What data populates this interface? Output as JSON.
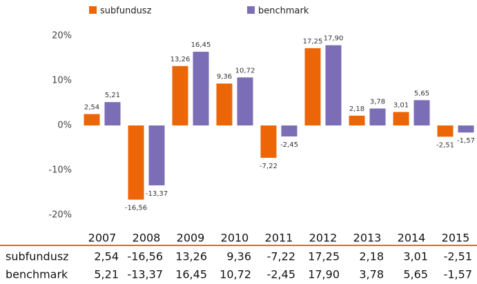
{
  "chart_data": {
    "type": "bar",
    "categories": [
      "2007",
      "2008",
      "2009",
      "2010",
      "2011",
      "2012",
      "2013",
      "2014",
      "2015"
    ],
    "series": [
      {
        "name": "subfundusz",
        "color": "#ec6608",
        "values": [
          2.54,
          -16.56,
          13.26,
          9.36,
          -7.22,
          17.25,
          2.18,
          3.01,
          -2.51
        ],
        "value_labels": [
          "2,54",
          "-16,56",
          "13,26",
          "9,36",
          "-7,22",
          "17,25",
          "2,18",
          "3,01",
          "-2,51"
        ]
      },
      {
        "name": "benchmark",
        "color": "#7b6db6",
        "values": [
          5.21,
          -13.37,
          16.45,
          10.72,
          -2.45,
          17.9,
          3.78,
          5.65,
          -1.57
        ],
        "value_labels": [
          "5,21",
          "-13,37",
          "16,45",
          "10,72",
          "-2,45",
          "17,90",
          "3,78",
          "5,65",
          "-1,57"
        ]
      }
    ],
    "ylim": [
      -20,
      20
    ],
    "yticks": [
      {
        "value": 20,
        "label": "20%"
      },
      {
        "value": 10,
        "label": "10%"
      },
      {
        "value": 0,
        "label": "0%"
      },
      {
        "value": -10,
        "label": "-10%"
      },
      {
        "value": -20,
        "label": "-20%"
      }
    ],
    "grid": false
  }
}
